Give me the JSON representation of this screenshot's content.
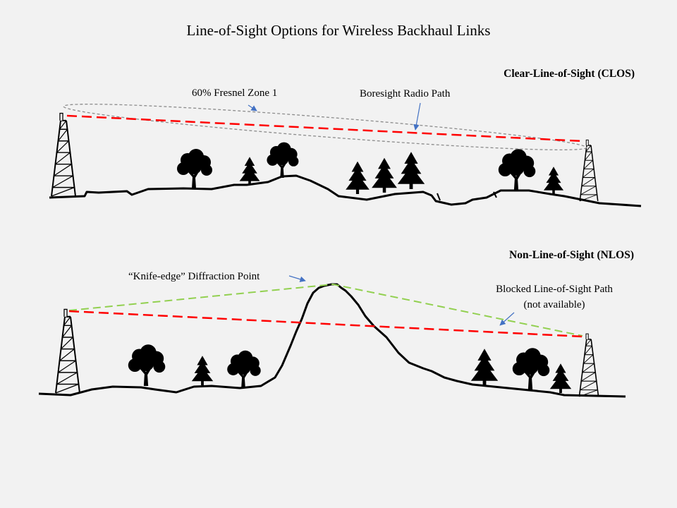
{
  "title": "Line-of-Sight Options for Wireless Backhaul Links",
  "clos": {
    "heading": "Clear-Line-of-Sight (CLOS)",
    "fresnel_label": "60% Fresnel Zone 1",
    "boresight_label": "Boresight Radio Path"
  },
  "nlos": {
    "heading": "Non-Line-of-Sight (NLOS)",
    "diffraction_label": "“Knife-edge” Diffraction Point",
    "blocked_label_line1": "Blocked Line-of-Sight  Path",
    "blocked_label_line2": "(not available)"
  },
  "colors": {
    "background": "#f2f2f2",
    "radio_path": "#ff0000",
    "diffraction_path": "#92d050",
    "fresnel_zone": "#8c8c8c",
    "pointer_arrow": "#4472c4",
    "terrain": "#000000"
  }
}
